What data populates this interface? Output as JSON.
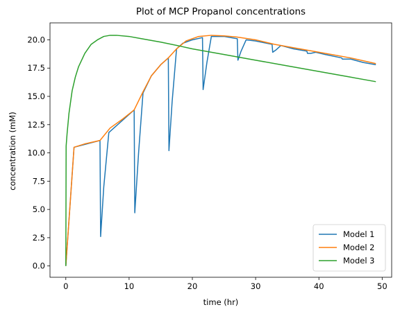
{
  "chart_data": {
    "type": "line",
    "title": "Plot of MCP Propanol concentrations",
    "xlabel": "time (hr)",
    "ylabel": "concentration (mM)",
    "xlim": [
      -2.5,
      51.5
    ],
    "ylim": [
      -1.0,
      21.5
    ],
    "xticks": [
      0,
      10,
      20,
      30,
      40,
      50
    ],
    "yticks": [
      0.0,
      2.5,
      5.0,
      7.5,
      10.0,
      12.5,
      15.0,
      17.5,
      20.0
    ],
    "xtick_labels": [
      "0",
      "10",
      "20",
      "30",
      "40",
      "50"
    ],
    "ytick_labels": [
      "0.0",
      "2.5",
      "5.0",
      "7.5",
      "10.0",
      "12.5",
      "15.0",
      "17.5",
      "20.0"
    ],
    "grid": false,
    "legend_position": "lower-right",
    "series": [
      {
        "name": "Model 1",
        "color": "#1f77b4",
        "x": [
          0,
          1.3,
          5.4,
          5.5,
          6.0,
          6.8,
          10.8,
          10.9,
          11.5,
          12.2,
          13.5,
          15.0,
          16.2,
          16.3,
          16.8,
          17.5,
          18.5,
          20.0,
          21.6,
          21.7,
          22.3,
          23.0,
          25.0,
          27.1,
          27.2,
          27.7,
          28.5,
          30.0,
          32.6,
          32.7,
          33.2,
          34.0,
          36.0,
          38.1,
          38.2,
          38.7,
          39.5,
          41.0,
          43.6,
          43.7,
          44.2,
          45.0,
          47.0,
          49.0
        ],
        "y": [
          0,
          10.5,
          11.1,
          2.6,
          7.0,
          11.8,
          13.8,
          4.7,
          10.0,
          15.3,
          16.8,
          17.8,
          18.4,
          10.2,
          14.5,
          19.2,
          19.7,
          20.0,
          20.2,
          15.6,
          18.0,
          20.3,
          20.3,
          20.1,
          18.2,
          19.0,
          20.0,
          19.9,
          19.6,
          18.9,
          19.1,
          19.5,
          19.2,
          19.0,
          18.8,
          18.8,
          18.9,
          18.7,
          18.4,
          18.3,
          18.3,
          18.3,
          18.0,
          17.8
        ]
      },
      {
        "name": "Model 2",
        "color": "#ff7f0e",
        "x": [
          0,
          1.3,
          3,
          5.4,
          7,
          9,
          10.8,
          12.2,
          13.5,
          15,
          16.2,
          17.5,
          19,
          21,
          23,
          25,
          27,
          30,
          33,
          36,
          39,
          42,
          45,
          49
        ],
        "y": [
          0,
          10.5,
          10.8,
          11.1,
          12.2,
          13.0,
          13.8,
          15.4,
          16.8,
          17.8,
          18.4,
          19.2,
          19.9,
          20.3,
          20.4,
          20.35,
          20.25,
          20.0,
          19.6,
          19.3,
          19.0,
          18.7,
          18.4,
          17.9
        ]
      },
      {
        "name": "Model 3",
        "color": "#2ca02c",
        "x": [
          0,
          0.05,
          0.2,
          0.5,
          1,
          1.5,
          2,
          3,
          4,
          5,
          6,
          7,
          8,
          10,
          12,
          15,
          18,
          20,
          25,
          30,
          35,
          40,
          45,
          49
        ],
        "y": [
          0,
          10.6,
          11.7,
          13.5,
          15.5,
          16.7,
          17.6,
          18.8,
          19.6,
          20.0,
          20.3,
          20.4,
          20.4,
          20.3,
          20.1,
          19.8,
          19.45,
          19.2,
          18.7,
          18.2,
          17.7,
          17.2,
          16.7,
          16.3
        ]
      }
    ]
  }
}
